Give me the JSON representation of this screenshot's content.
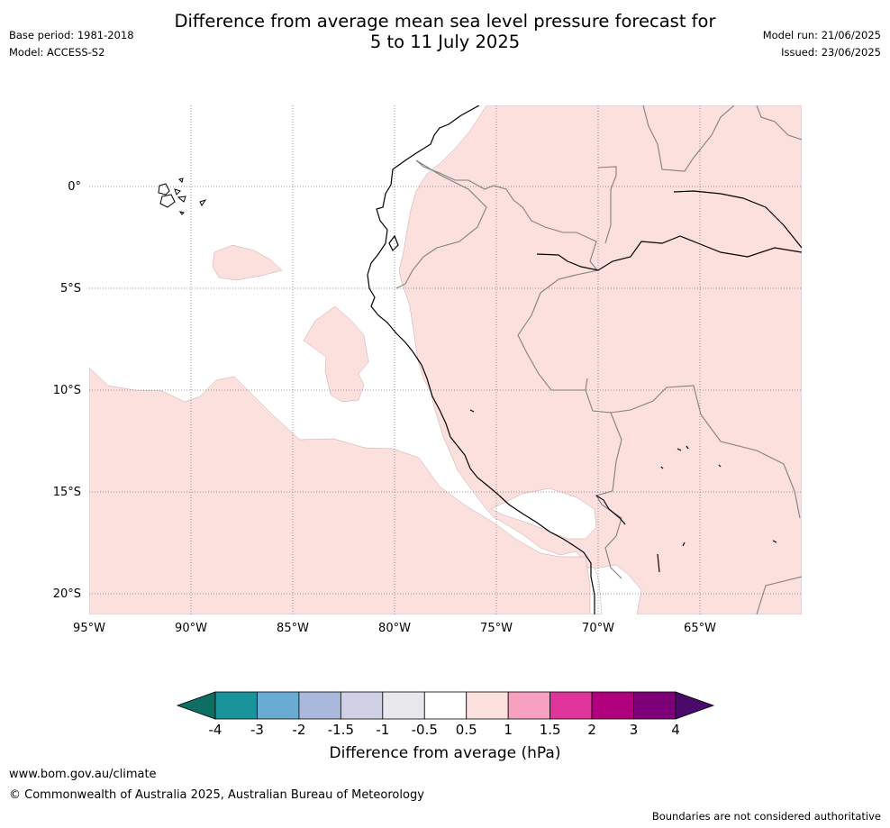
{
  "title_line1": "Difference from average mean sea level pressure forecast for",
  "title_line2": "5 to 11 July 2025",
  "base_period": "Base period: 1981-2018",
  "model_name": "Model: ACCESS-S2",
  "model_run": "Model run: 21/06/2025",
  "issued": "Issued: 23/06/2025",
  "map": {
    "lon_range": [
      -95,
      -60
    ],
    "lat_range": [
      -21,
      4
    ],
    "lat_labels": [
      "0°",
      "5°S",
      "10°S",
      "15°S",
      "20°S"
    ],
    "lon_labels": [
      "95°W",
      "90°W",
      "85°W",
      "80°W",
      "75°W",
      "70°W",
      "65°W"
    ],
    "grid": "dotted",
    "anomaly_colors": {
      "neutral": "#ffffff",
      "plus_0_5_to_1": "#fce0dd"
    }
  },
  "colorbar": {
    "title": "Difference from average (hPa)",
    "tick_labels": [
      "-4",
      "-3",
      "-2",
      "-1.5",
      "-1",
      "-0.5",
      "0.5",
      "1",
      "1.5",
      "2",
      "3",
      "4"
    ],
    "extend_low_color": "#0d6e63",
    "extend_high_color": "#4a0a6b",
    "colors": [
      "#1a9299",
      "#6aabd4",
      "#a9b9db",
      "#cfd0e6",
      "#e8e7ec",
      "#ffffff",
      "#fce0dd",
      "#f8a0bf",
      "#df359a",
      "#b0007d",
      "#7e0078"
    ]
  },
  "footer": {
    "website": "www.bom.gov.au/climate",
    "copyright": "© Commonwealth of Australia 2025, Australian Bureau of Meteorology",
    "disclaimer": "Boundaries are not considered authoritative"
  }
}
